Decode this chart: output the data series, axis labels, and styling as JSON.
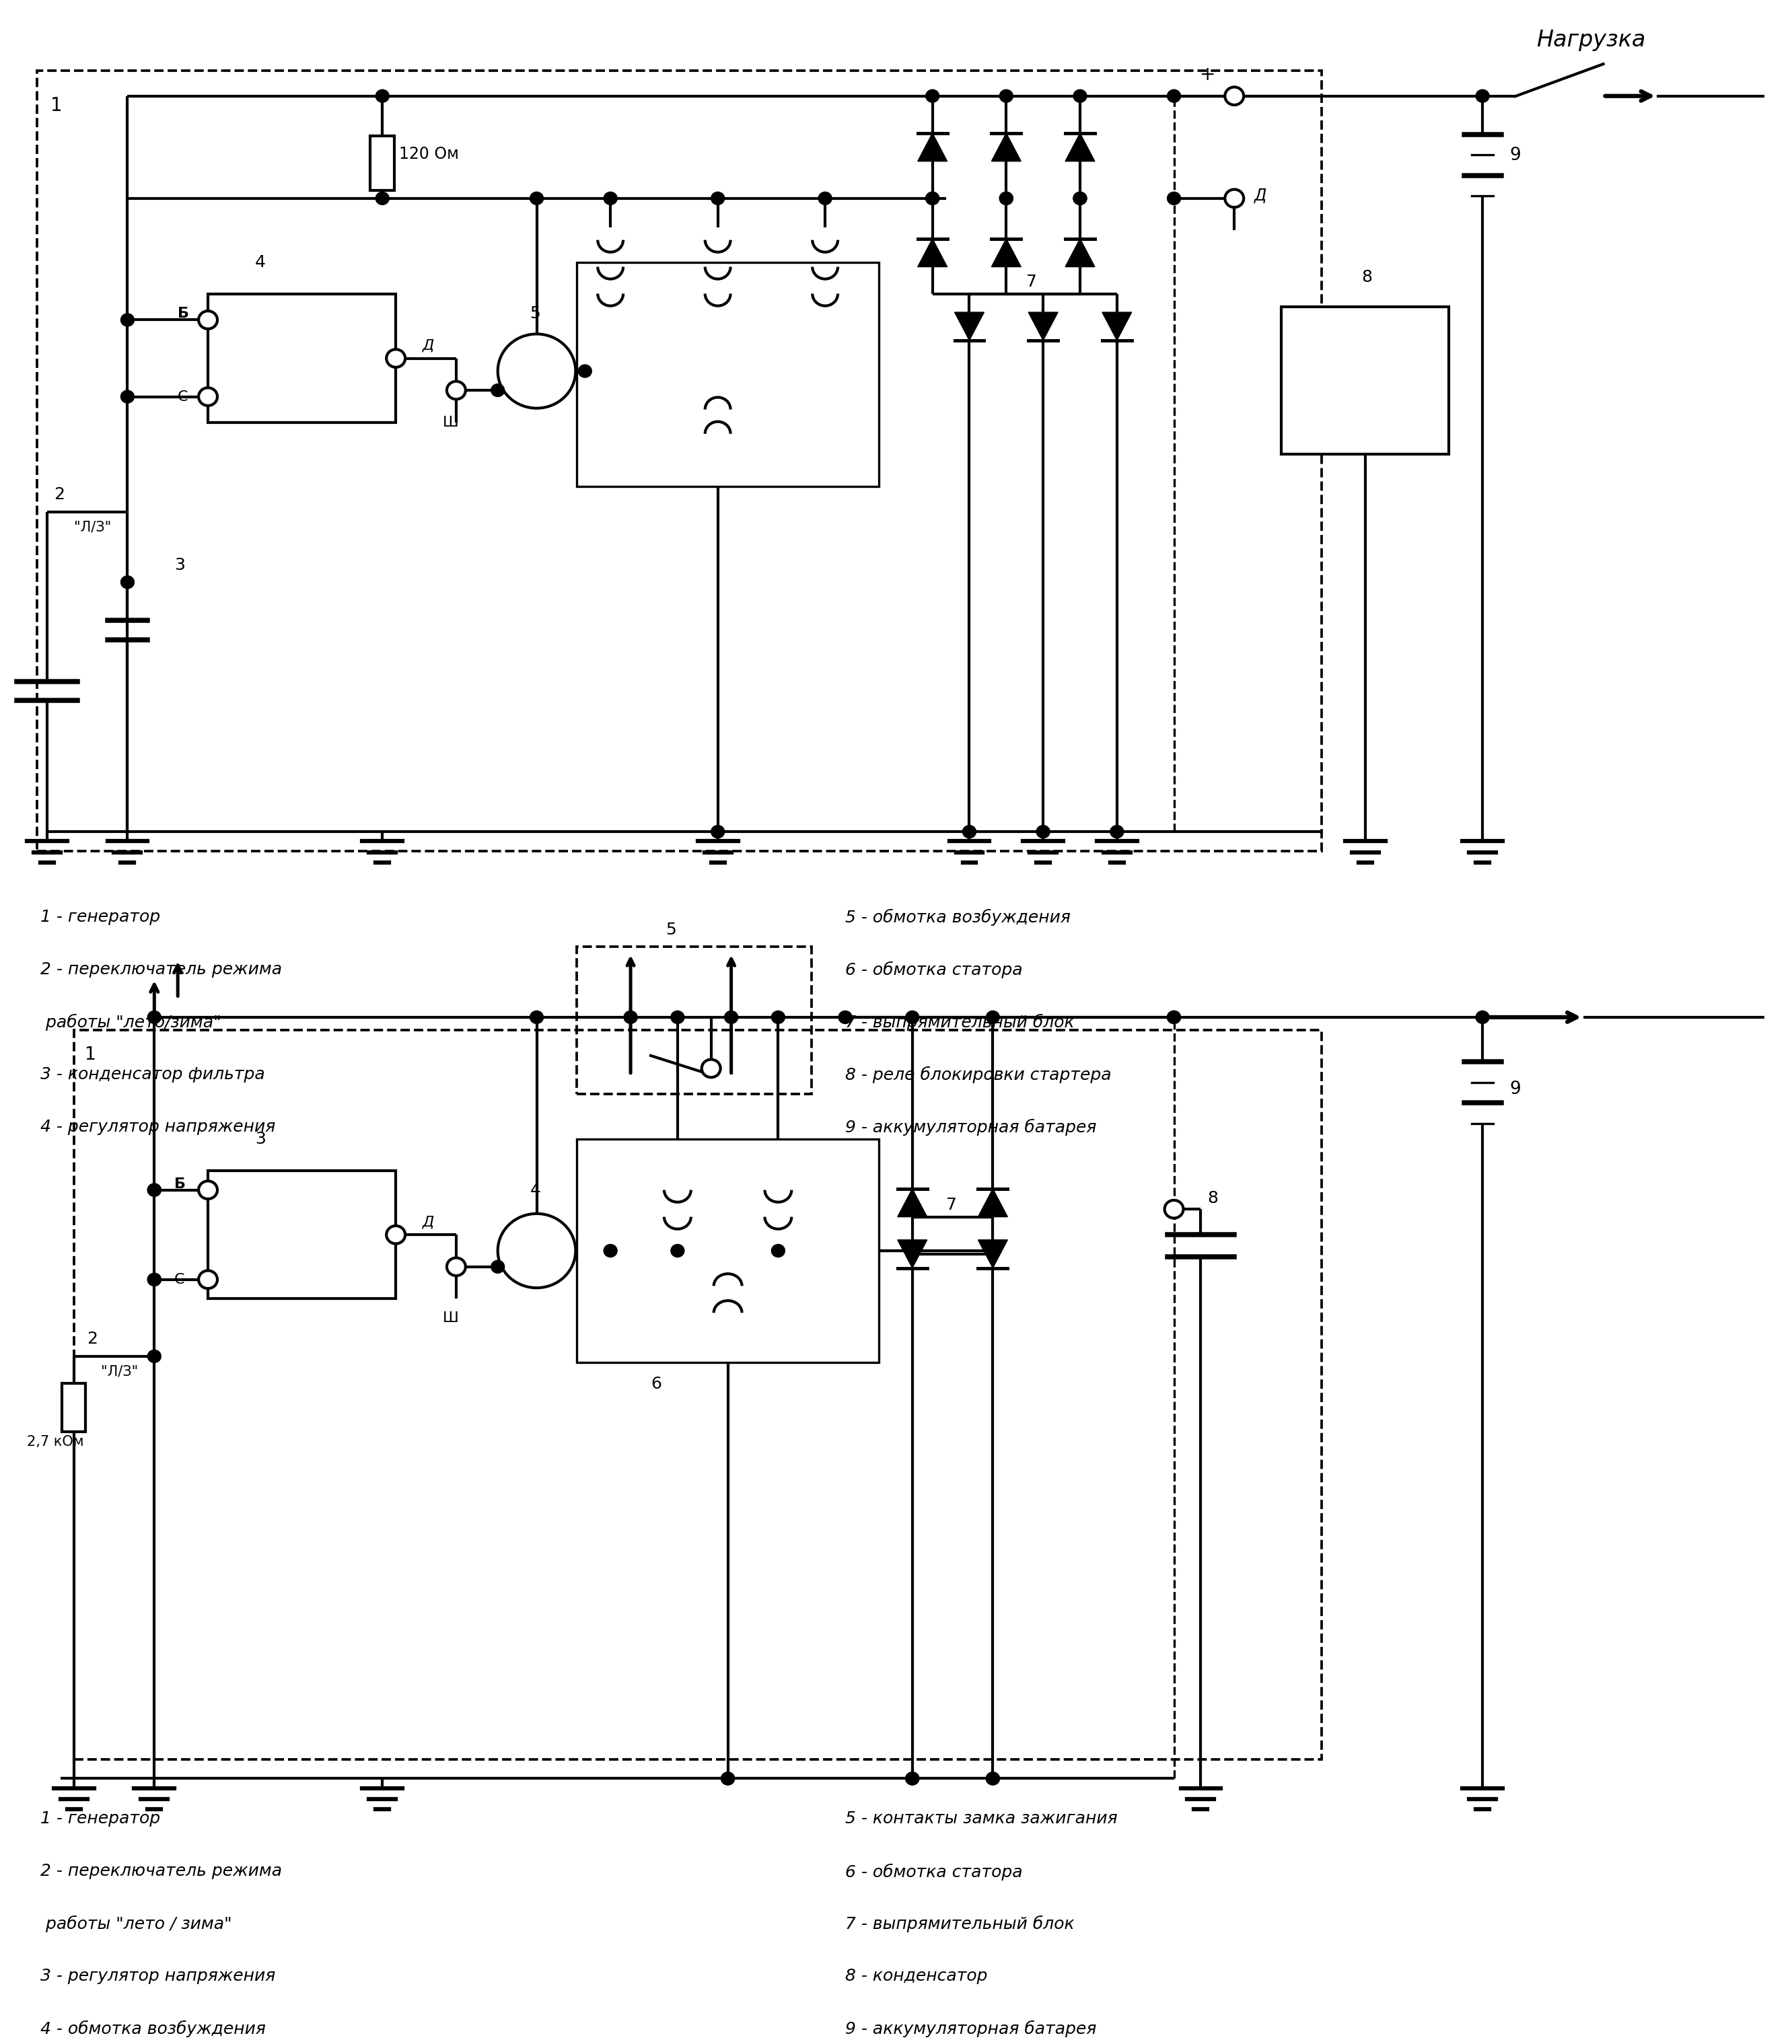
{
  "bg_color": "#ffffff",
  "line_color": "#000000",
  "lw": 3.0,
  "d1_legend_left": [
    "1 - генератор",
    "2 - переключатель режима",
    " работы \"лето/зима\"",
    "3 - конденсатор фильтра",
    "4 - регулятор напряжения"
  ],
  "d1_legend_right": [
    "5 - обмотка возбуждения",
    "6 - обмотка статора",
    "7 - выпрямительный блок",
    "8 - реле блокировки стартера",
    "9 - аккумуляторная батарея"
  ],
  "d2_legend_left": [
    "1 - генератор",
    "2 - переключатель режима",
    " работы \"лето / зима\"",
    "3 - регулятор напряжения",
    "4 - обмотка возбуждения"
  ],
  "d2_legend_right": [
    "5 - контакты замка зажигания",
    "6 - обмотка статора",
    "7 - выпрямительный блок",
    "8 - конденсатор",
    "9 - аккумуляторная батарея"
  ]
}
